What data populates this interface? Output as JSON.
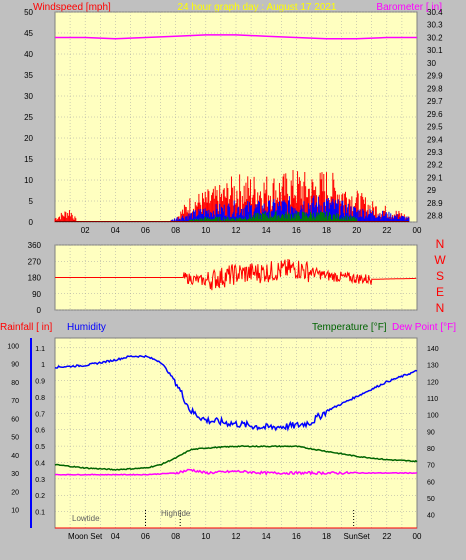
{
  "header": {
    "left": "Windspeed [mph]",
    "center": "24 hour graph day : August 17 2021",
    "right": "Barometer [ in]"
  },
  "colors": {
    "background": "#c0c0c0",
    "plot_bg": "#ffffc0",
    "grid": "#a0a0a0",
    "wind_max": "#ff0000",
    "wind_avg": "#0000ff",
    "wind_min": "#008000",
    "barometer": "#ff00ff",
    "wind_dir": "#ff0000",
    "humidity": "#0000ff",
    "temperature": "#006400",
    "dew_point": "#ff00ff",
    "rainfall": "#ff0000"
  },
  "compass": [
    "N",
    "W",
    "S",
    "E",
    "N"
  ],
  "bottom_header": {
    "rainfall": "Rainfall [ in]",
    "humidity": "Humidity",
    "temperature": "Temperature [°F]",
    "dew_point": "Dew Point [°F]"
  },
  "events": {
    "low_tide": "Lowtide",
    "high_tide": "Hightide",
    "moon_set": "Moon Set",
    "sun_set": "SunSet"
  },
  "chart_data": [
    {
      "type": "line",
      "name": "wind_barometer",
      "xlabel": "",
      "ylabel": "Windspeed [mph]",
      "y2label": "Barometer [ in]",
      "x_ticks": [
        "02",
        "04",
        "06",
        "08",
        "10",
        "12",
        "14",
        "16",
        "18",
        "20",
        "22",
        "00"
      ],
      "ylim": [
        0,
        50
      ],
      "y_ticks": [
        0,
        5,
        10,
        15,
        20,
        25,
        30,
        35,
        40,
        45,
        50
      ],
      "y2lim": [
        28.75,
        30.4
      ],
      "y2_ticks": [
        "28.8",
        "28.9",
        "29",
        "29.1",
        "29.2",
        "29.3",
        "29.4",
        "29.5",
        "29.6",
        "29.7",
        "29.8",
        "29.9",
        "30",
        "30.1",
        "30.2",
        "30.3",
        "30.4"
      ],
      "barometer": {
        "x": [
          0,
          2,
          4,
          6,
          8,
          10,
          12,
          14,
          16,
          18,
          20,
          22,
          24
        ],
        "y": [
          30.2,
          30.2,
          30.19,
          30.2,
          30.21,
          30.22,
          30.22,
          30.21,
          30.2,
          30.19,
          30.19,
          30.2,
          30.2
        ]
      },
      "wind_max_envelope": {
        "x": [
          0,
          1,
          1.5,
          7.5,
          8,
          9,
          10,
          11,
          12,
          13,
          14,
          15,
          16,
          17,
          18,
          19,
          20,
          21,
          22,
          23,
          23.5
        ],
        "y": [
          1,
          3,
          0,
          0,
          1,
          5,
          6,
          7,
          9,
          9,
          9,
          9,
          10,
          9,
          10,
          8,
          6,
          4,
          3,
          2,
          1
        ]
      },
      "wind_avg_envelope": {
        "x": [
          7.5,
          8,
          9,
          10,
          12,
          14,
          16,
          18,
          20,
          22,
          23.5
        ],
        "y": [
          0,
          1,
          2,
          3,
          4,
          4,
          5,
          5,
          3,
          2,
          1
        ]
      },
      "wind_min_envelope": {
        "x": [
          8,
          10,
          12,
          14,
          16,
          18,
          20
        ],
        "y": [
          0,
          1,
          1,
          2,
          2,
          2,
          1
        ]
      }
    },
    {
      "type": "line",
      "name": "wind_direction",
      "ylim": [
        0,
        360
      ],
      "y_ticks": [
        0,
        90,
        180,
        270,
        360
      ],
      "x": [
        0,
        8.5,
        10,
        12,
        14,
        16,
        18,
        20,
        21,
        24
      ],
      "y": [
        180,
        180,
        160,
        200,
        210,
        230,
        190,
        175,
        170,
        175
      ]
    },
    {
      "type": "line",
      "name": "temperature_humidity",
      "x_ticks": [
        "Moon Set",
        "04",
        "06",
        "08",
        "10",
        "12",
        "14",
        "16",
        "18",
        "SunSet",
        "22",
        "00"
      ],
      "y_left_ticks_humidity": [
        10,
        20,
        30,
        40,
        50,
        60,
        70,
        80,
        90,
        100
      ],
      "y_left_ticks_rain": [
        "0.1",
        "0.2",
        "0.3",
        "0.4",
        "0.5",
        "0.6",
        "0.7",
        "0.8",
        "0.9",
        "1",
        "1.1"
      ],
      "y_right_ticks_temp": [
        40,
        50,
        60,
        70,
        80,
        90,
        100,
        110,
        120,
        130,
        140
      ],
      "humidity": {
        "x": [
          0,
          2,
          4,
          5,
          6,
          7,
          8,
          9,
          10,
          12,
          14,
          16,
          17,
          18,
          20,
          22,
          24
        ],
        "y": [
          88,
          89,
          92,
          94,
          94,
          91,
          80,
          64,
          59,
          57,
          55,
          56,
          58,
          64,
          72,
          80,
          86
        ]
      },
      "temperature": {
        "x": [
          0,
          2,
          4,
          6,
          7,
          8,
          9,
          10,
          12,
          14,
          16,
          18,
          20,
          22,
          24
        ],
        "y": [
          70,
          68,
          67,
          68,
          70,
          74,
          79,
          80,
          81,
          81,
          81,
          78,
          75,
          73,
          72
        ]
      },
      "dew_point": {
        "x": [
          0,
          2,
          4,
          6,
          8,
          9,
          10,
          12,
          14,
          16,
          18,
          20,
          22,
          24
        ],
        "y": [
          64,
          64,
          64,
          64,
          65,
          67,
          65,
          66,
          65,
          65,
          65,
          65,
          65,
          65
        ]
      },
      "rainfall": {
        "x": [
          0,
          24
        ],
        "y": [
          0,
          0
        ]
      }
    }
  ]
}
